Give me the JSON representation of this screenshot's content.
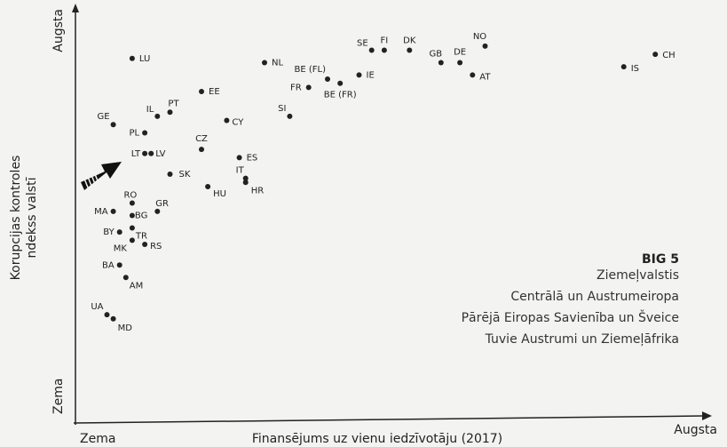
{
  "chart_data": {
    "type": "scatter",
    "xlabel": "Finansējums uz vienu iedzīvotāju (2017)",
    "ylabel": [
      "Korupcijas kontroles",
      "ndekss valstī"
    ],
    "x_low_label": "Zema",
    "x_high_label": "Augsta",
    "y_low_label": "Zema",
    "y_high_label": "Augsta",
    "xlim": [
      0,
      100
    ],
    "ylim": [
      0,
      100
    ],
    "legend": {
      "title": "BIG 5",
      "entries": [
        "Ziemeļvalstis",
        "Centrālā un Austrumeiropa",
        "Pārējā Eiropas Savienība un Šveice",
        "Tuvie Austrumi un Ziemeļāfrika"
      ]
    },
    "series": [
      {
        "color": "#222222",
        "labels": [
          "LU",
          "NL",
          "SE",
          "FI",
          "DK",
          "GB",
          "DE",
          "NO",
          "AT",
          "IS",
          "CH",
          "BE (FL)",
          "IE",
          "FR",
          "BE (FR)",
          "EE",
          "PT",
          "IL",
          "SI",
          "GE",
          "CY",
          "PL",
          "CZ",
          "LT",
          "LV",
          "ES",
          "IT",
          "HR",
          "SK",
          "HU",
          "RO",
          "GR",
          "MA",
          "BG",
          "BY",
          "TR",
          "MK",
          "RS",
          "BA",
          "AM",
          "UA",
          "MD"
        ],
        "x": [
          9,
          30,
          47,
          49,
          53,
          58,
          61,
          65,
          63,
          87,
          92,
          40,
          45,
          37,
          42,
          20,
          15,
          13,
          34,
          6,
          24,
          11,
          20,
          11,
          12,
          26,
          27,
          27,
          15,
          21,
          9,
          13,
          6,
          9,
          7,
          9,
          9,
          11,
          7,
          8,
          5,
          6
        ],
        "values": [
          88,
          87,
          90,
          90,
          90,
          87,
          87,
          91,
          84,
          86,
          89,
          83,
          84,
          81,
          82,
          80,
          75,
          74,
          74,
          72,
          73,
          70,
          66,
          65,
          65,
          64,
          59,
          58,
          60,
          57,
          53,
          51,
          51,
          50,
          46,
          47,
          44,
          43,
          38,
          35,
          26,
          25
        ]
      }
    ]
  }
}
